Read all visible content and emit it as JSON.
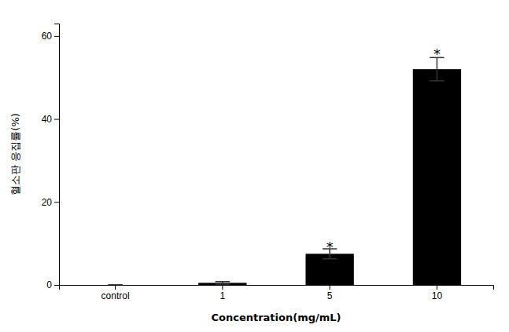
{
  "chart_data": {
    "type": "bar",
    "categories": [
      "control",
      "1",
      "5",
      "10"
    ],
    "values": [
      0.0,
      0.5,
      7.5,
      52.0
    ],
    "errors": [
      0.0,
      0.3,
      1.2,
      2.8
    ],
    "color": "#000000",
    "xlabel": "Concentration(mg/mL)",
    "ylabel": "혈소판 응집률(%)",
    "ylim": [
      0,
      63
    ],
    "yticks": [
      0,
      20,
      40,
      60
    ],
    "annotations": [
      {
        "text": "*",
        "x": "5",
        "y": 10.0
      },
      {
        "text": "*",
        "x": "10",
        "y": 56.5
      }
    ]
  }
}
